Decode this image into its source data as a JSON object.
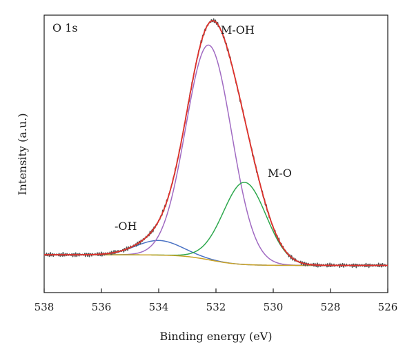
{
  "chart_data": {
    "type": "line",
    "title": "",
    "panel_label": "O 1s",
    "xlabel": "Binding energy (eV)",
    "ylabel": "Intensity (a.u.)",
    "xlim": [
      538,
      526
    ],
    "x_reversed": true,
    "x_ticks": [
      538,
      536,
      534,
      532,
      530,
      528,
      526
    ],
    "y_ticks_labeled": false,
    "grid": false,
    "legend": "none",
    "annotations": [
      {
        "text": "M-OH",
        "x": 531.5,
        "y": 1.0
      },
      {
        "text": "M-O",
        "x": 529.8,
        "y": 0.4
      },
      {
        "text": "-OH",
        "x": 534.8,
        "y": 0.17
      }
    ],
    "series": [
      {
        "role": "experimental",
        "color": "#555555",
        "peaks": [
          532.2,
          531.0,
          534.0,
          529.0
        ]
      },
      {
        "role": "envelope fit",
        "color": "#e0312b"
      },
      {
        "role": "-OH",
        "color": "#4a72c4",
        "center": 534.0,
        "height": 0.055
      },
      {
        "role": "M-OH",
        "color": "#a06ac2",
        "center": 532.25,
        "height": 0.81
      },
      {
        "role": "M-O",
        "color": "#2ea84e",
        "center": 531.0,
        "height": 0.31
      },
      {
        "role": "background",
        "color": "#c9a227"
      }
    ],
    "notes": "Heights are relative intensities (a.u.) above the Shirley-type background; background steps from about 0.005 at 538 eV to -0.035 at 526 eV."
  }
}
